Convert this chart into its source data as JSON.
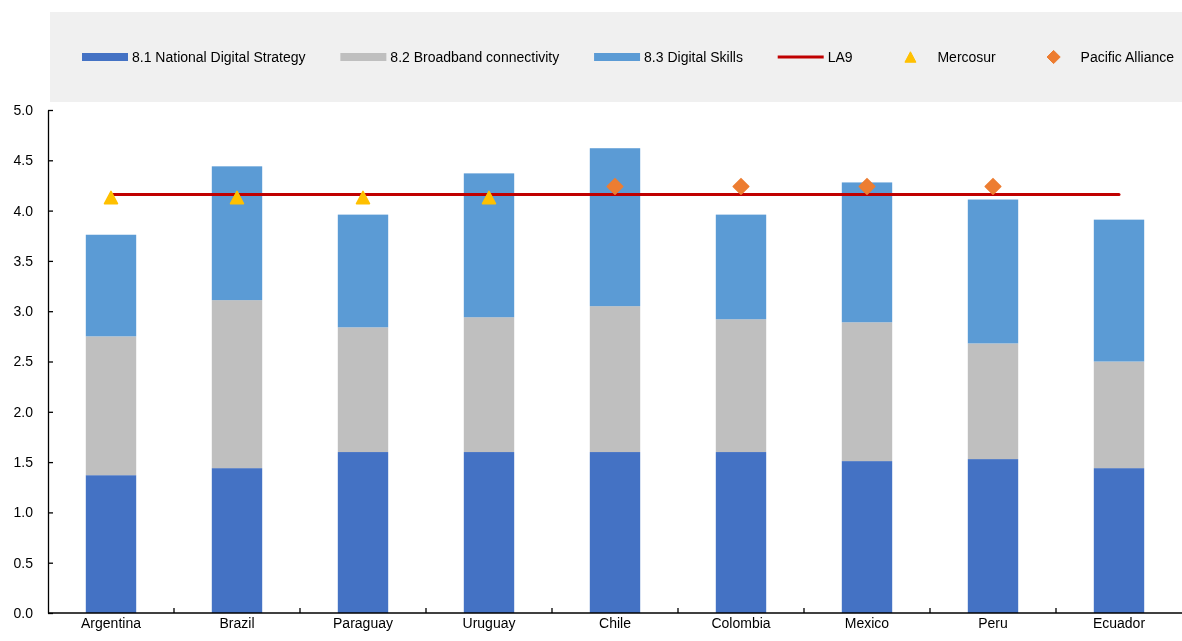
{
  "chart_data": {
    "type": "bar",
    "stacked": true,
    "legend": "top",
    "categories": [
      "Argentina",
      "Brazil",
      "Paraguay",
      "Uruguay",
      "Chile",
      "Colombia",
      "Mexico",
      "Peru",
      "Ecuador"
    ],
    "ylim": [
      0,
      5
    ],
    "yticks": [
      {
        "value": 0,
        "label": "0.0"
      },
      0.5,
      {
        "value": 1,
        "label": "1.0"
      },
      1.5,
      {
        "value": 2,
        "label": "2.0"
      },
      2.5,
      {
        "value": 3,
        "label": "3.0"
      },
      3.5,
      {
        "value": 4,
        "label": "4.0"
      },
      4.5,
      {
        "value": 5,
        "label": "5.0"
      }
    ],
    "series": [
      {
        "name": "8.1 National Digital Strategy",
        "color": "#4472c4",
        "values": [
          1.37,
          1.44,
          1.6,
          1.6,
          1.6,
          1.6,
          1.51,
          1.53,
          1.44
        ]
      },
      {
        "name": "8.2 Broadband connectivity",
        "color": "#bfbfbf",
        "values": [
          1.38,
          1.67,
          1.24,
          1.34,
          1.45,
          1.32,
          1.38,
          1.15,
          1.06
        ]
      },
      {
        "name": "8.3 Digital Skills",
        "color": "#5b9bd5",
        "values": [
          1.01,
          1.33,
          1.12,
          1.43,
          1.57,
          1.04,
          1.39,
          1.43,
          1.41
        ]
      },
      {
        "name": "LA9",
        "type": "line",
        "color": "#c00000",
        "values": [
          4.16,
          4.16,
          4.16,
          4.16,
          4.16,
          4.16,
          4.16,
          4.16,
          4.16
        ]
      },
      {
        "name": "Mercosur",
        "type": "scatter",
        "marker": "triangle",
        "color": "#ffc000",
        "values": [
          4.13,
          4.13,
          4.13,
          4.13,
          null,
          null,
          null,
          null,
          null
        ]
      },
      {
        "name": "Pacific Alliance",
        "type": "scatter",
        "marker": "diamond",
        "color": "#ed7d31",
        "values": [
          null,
          null,
          null,
          null,
          4.24,
          4.24,
          4.24,
          4.24,
          null
        ]
      }
    ]
  }
}
